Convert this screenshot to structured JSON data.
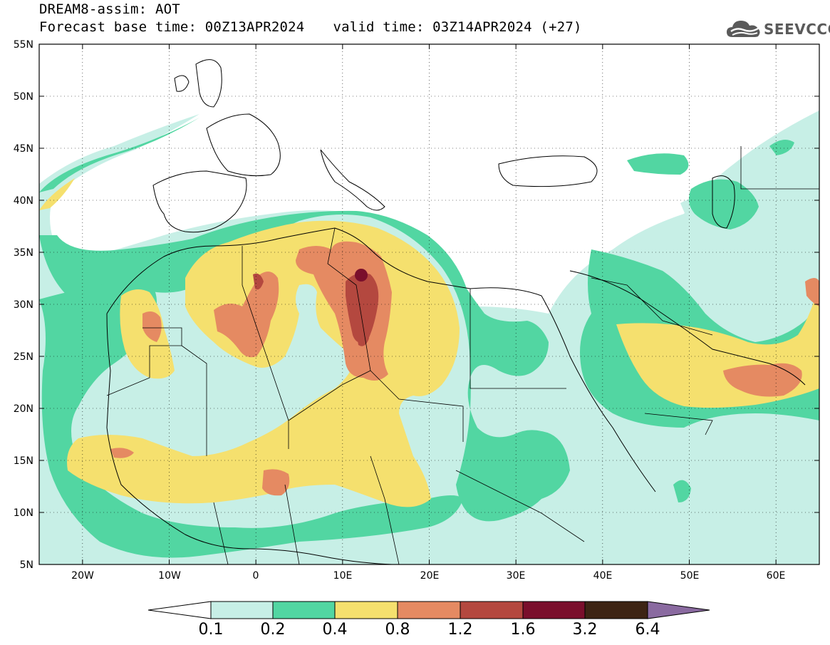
{
  "title_line1": "DREAM8-assim: AOT",
  "forecast_base": "Forecast base time: 00Z13APR2024",
  "valid_time": "valid time: 03Z14APR2024 (+27)",
  "logo_text": "SEEVCCC",
  "logo_icon": "cloud-logo-icon",
  "map": {
    "lat_labels": [
      "55N",
      "50N",
      "45N",
      "40N",
      "35N",
      "30N",
      "25N",
      "20N",
      "15N",
      "10N",
      "5N"
    ],
    "lon_labels": [
      "20W",
      "10W",
      "0",
      "10E",
      "20E",
      "30E",
      "40E",
      "50E",
      "60E"
    ],
    "lat_range": [
      5,
      55
    ],
    "lon_range": [
      -25,
      65
    ]
  },
  "colorbar": {
    "labels": [
      "0.1",
      "0.2",
      "0.4",
      "0.8",
      "1.2",
      "1.6",
      "3.2",
      "6.4"
    ],
    "colors": [
      "#ffffff",
      "#c7efe6",
      "#52d6a2",
      "#f5e06e",
      "#e58a62",
      "#b4483f",
      "#7a0f2c",
      "#3d2414",
      "#8a6aa0"
    ]
  }
}
